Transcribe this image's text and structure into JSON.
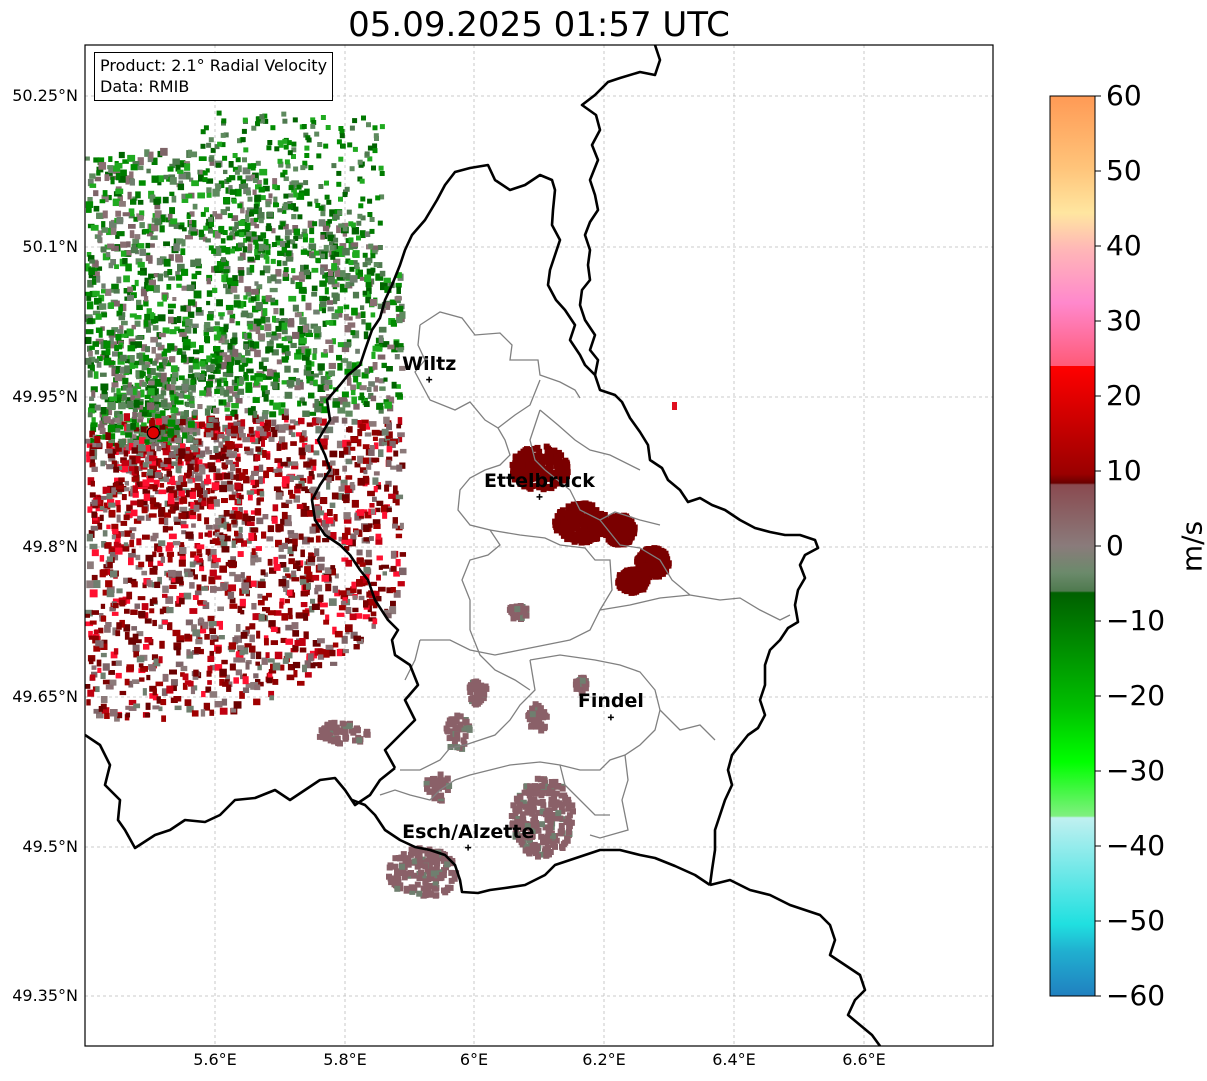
{
  "title": "05.09.2025 01:57 UTC",
  "info": {
    "product": "Product: 2.1° Radial Velocity",
    "data_source": "Data: RMIB"
  },
  "axes": {
    "lat_labels": [
      "50.25°N",
      "50.1°N",
      "49.95°N",
      "49.8°N",
      "49.65°N",
      "49.5°N",
      "49.35°N"
    ],
    "lon_labels": [
      "5.6°E",
      "5.8°E",
      "6°E",
      "6.2°E",
      "6.4°E",
      "6.6°E"
    ]
  },
  "colorbar": {
    "unit": "m/s",
    "ticks": [
      "60",
      "50",
      "40",
      "30",
      "20",
      "10",
      "0",
      "−10",
      "−20",
      "−30",
      "−40",
      "−50",
      "−60"
    ],
    "min": -60,
    "max": 60
  },
  "cities": [
    {
      "name": "Wiltz",
      "lon": 5.93,
      "lat": 49.967
    },
    {
      "name": "Ettelbruck",
      "lon": 6.1,
      "lat": 49.85
    },
    {
      "name": "Findel",
      "lon": 6.21,
      "lat": 49.63
    },
    {
      "name": "Esch/Alzette",
      "lon": 5.99,
      "lat": 49.5
    }
  ],
  "radar_site": {
    "lon": 5.505,
    "lat": 49.914
  },
  "colors": {
    "border": "#000000",
    "district": "#808080",
    "grid": "#bbbbbb",
    "radar_marker": "#e00000"
  }
}
